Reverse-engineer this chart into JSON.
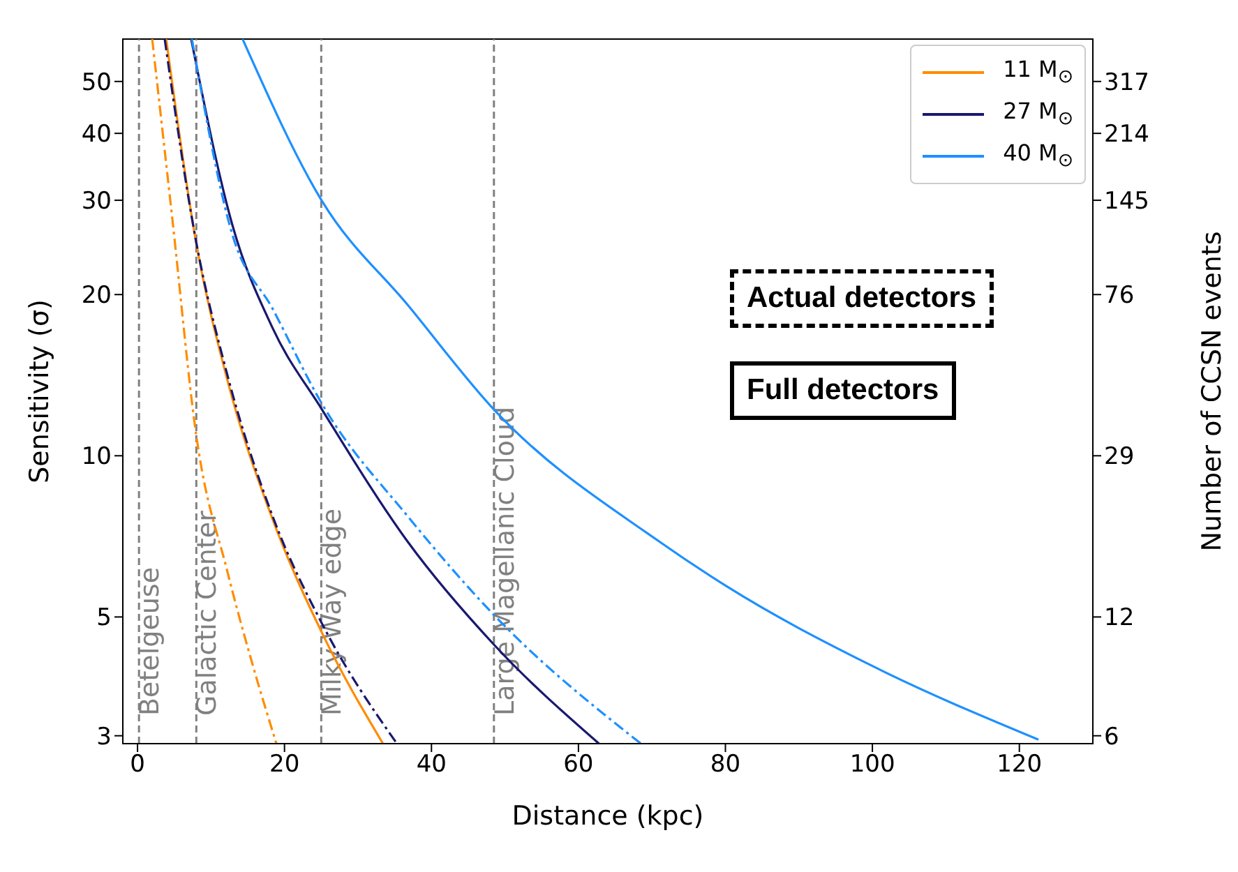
{
  "chart_data": {
    "type": "line",
    "xlabel": "Distance (kpc)",
    "ylabel": "Sensitivity (σ)",
    "y2label": "Number of CCSN events",
    "xlim": [
      -2,
      130
    ],
    "xticks": [
      0,
      20,
      40,
      60,
      80,
      100,
      120
    ],
    "ylim": [
      2.9,
      60
    ],
    "yticks": [
      3,
      5,
      10,
      20,
      30,
      40,
      50
    ],
    "y2_categories": [
      "317",
      "214",
      "145",
      "76",
      "29",
      "12",
      "6"
    ],
    "log": true,
    "legend": "top right",
    "marker": "none",
    "series": [
      {
        "name": "11 M$_{⊙}$",
        "color": "#ff8c00",
        "line_style": "solid",
        "x": [
          3.9,
          8.0,
          12.2,
          18.4,
          25.1,
          33.4
        ],
        "values": [
          60,
          24.9,
          13.9,
          7.6,
          4.67,
          2.9
        ]
      },
      {
        "name": "27 M$_{⊙}$",
        "color": "#191970",
        "line_style": "solid",
        "x": [
          7.3,
          12.9,
          18.4,
          25.1,
          36.8,
          48.5,
          62.8
        ],
        "values": [
          60,
          27,
          17.3,
          12.2,
          6.9,
          4.44,
          2.9
        ]
      },
      {
        "name": "40 M$_{⊙}$",
        "color": "#1e90ff",
        "line_style": "solid",
        "x": [
          14.3,
          25.1,
          36.8,
          48.5,
          71.1,
          80.2,
          100,
          122.6
        ],
        "values": [
          60,
          29.9,
          19.1,
          12.2,
          6.9,
          5.7,
          4.05,
          2.95
        ]
      },
      {
        "color": "#ff8c00",
        "line_style": "dashdot",
        "x": [
          2.0,
          4.7,
          8.0,
          12.2,
          15.6,
          18.9
        ],
        "values": [
          60,
          28,
          10.9,
          6.1,
          4.1,
          2.9
        ]
      },
      {
        "color": "#191970",
        "line_style": "dashdot",
        "x": [
          3.7,
          8.0,
          12.2,
          18.4,
          25.1,
          35.3
        ],
        "values": [
          60,
          25,
          14.2,
          7.7,
          4.86,
          2.9
        ]
      },
      {
        "color": "#1e90ff",
        "line_style": "dashdot",
        "x": [
          7.4,
          12.9,
          18.4,
          25.1,
          36.8,
          48.4,
          68.5
        ],
        "values": [
          60,
          25.9,
          18.8,
          12.5,
          7.7,
          5.06,
          2.9
        ]
      }
    ],
    "ref_lines": [
      {
        "axis": "x",
        "value": 0.2,
        "label": "Betelgeuse",
        "color": "#808080",
        "line_style": "dashed"
      },
      {
        "axis": "x",
        "value": 8,
        "label": "Galactic Center",
        "color": "#808080",
        "line_style": "dashed"
      },
      {
        "axis": "x",
        "value": 25,
        "label": "Milky Way edge",
        "color": "#808080",
        "line_style": "dashed"
      },
      {
        "axis": "x",
        "value": 48.5,
        "label": "Large Magellanic Cloud",
        "color": "#808080",
        "line_style": "dashed"
      }
    ],
    "annotations": [
      "Actual detectors",
      "Full detectors"
    ]
  }
}
